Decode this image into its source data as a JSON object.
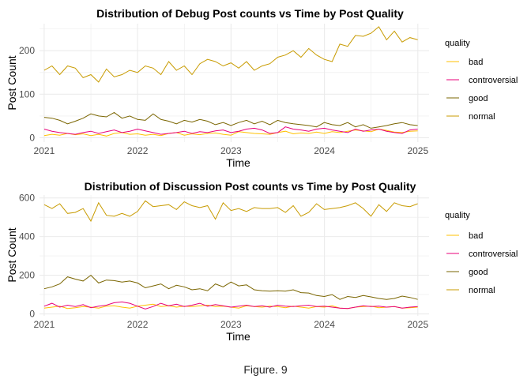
{
  "caption": "Figure. 9",
  "colors": {
    "bad": "#FFC000",
    "controversial": "#E8007A",
    "good": "#7A6500",
    "normal": "#C89B00",
    "grid": "#EBEBEB",
    "axis_text": "#4D4D4D"
  },
  "chart_data": [
    {
      "type": "line",
      "title": "Distribution of Debug Post counts vs Time by Post Quality",
      "xlabel": "Time",
      "ylabel": "Post Count",
      "xlim": [
        2020.95,
        2025.12
      ],
      "ylim": [
        -10,
        262
      ],
      "x_ticks": [
        2021,
        2022,
        2023,
        2024,
        2025
      ],
      "x_tick_labels": [
        "2021",
        "2022",
        "2023",
        "2024",
        "2025"
      ],
      "y_ticks": [
        0,
        100,
        200
      ],
      "y_tick_labels": [
        "0",
        "100",
        "200"
      ],
      "x_start": 2021,
      "x_step": 0.0833,
      "grid": true,
      "legend_title": "quality",
      "legend_position": "right",
      "series": [
        {
          "name": "bad",
          "color_key": "bad",
          "values": [
            5,
            8,
            6,
            10,
            7,
            9,
            5,
            8,
            4,
            10,
            12,
            8,
            9,
            6,
            8,
            5,
            10,
            12,
            6,
            9,
            7,
            10,
            11,
            8,
            6,
            14,
            12,
            10,
            9,
            8,
            12,
            15,
            9,
            11,
            10,
            13,
            10,
            14,
            12,
            15,
            18,
            16,
            14,
            20,
            17,
            13,
            12,
            15,
            16
          ]
        },
        {
          "name": "controversial",
          "color_key": "controversial",
          "values": [
            20,
            15,
            12,
            10,
            8,
            12,
            15,
            10,
            14,
            18,
            12,
            15,
            20,
            16,
            12,
            8,
            10,
            12,
            15,
            10,
            14,
            12,
            16,
            18,
            12,
            15,
            20,
            22,
            18,
            10,
            12,
            25,
            20,
            18,
            15,
            20,
            22,
            18,
            15,
            12,
            20,
            15,
            18,
            20,
            15,
            12,
            10,
            18,
            20
          ]
        },
        {
          "name": "good",
          "color_key": "good",
          "values": [
            47,
            45,
            40,
            32,
            38,
            45,
            55,
            50,
            48,
            58,
            45,
            50,
            42,
            40,
            55,
            42,
            38,
            32,
            40,
            36,
            42,
            38,
            30,
            35,
            28,
            35,
            40,
            32,
            38,
            30,
            40,
            35,
            32,
            30,
            28,
            25,
            35,
            30,
            28,
            35,
            25,
            30,
            22,
            25,
            28,
            32,
            35,
            30,
            28
          ]
        },
        {
          "name": "normal",
          "color_key": "normal",
          "values": [
            155,
            165,
            145,
            165,
            160,
            138,
            145,
            128,
            158,
            140,
            145,
            155,
            150,
            165,
            160,
            145,
            175,
            155,
            165,
            145,
            170,
            180,
            175,
            165,
            172,
            160,
            175,
            155,
            165,
            170,
            185,
            190,
            200,
            185,
            205,
            190,
            180,
            175,
            215,
            210,
            235,
            233,
            240,
            255,
            225,
            245,
            220,
            230,
            225
          ]
        }
      ]
    },
    {
      "type": "line",
      "title": "Distribution of Discussion Post counts vs Time by Post Quality",
      "xlabel": "Time",
      "ylabel": "Post Count",
      "xlim": [
        2020.95,
        2025.12
      ],
      "ylim": [
        -10,
        615
      ],
      "x_ticks": [
        2021,
        2022,
        2023,
        2024,
        2025
      ],
      "x_tick_labels": [
        "2021",
        "2022",
        "2023",
        "2024",
        "2025"
      ],
      "y_ticks": [
        0,
        200,
        400,
        600
      ],
      "y_tick_labels": [
        "0",
        "200",
        "400",
        "600"
      ],
      "x_start": 2021,
      "x_step": 0.0833,
      "grid": true,
      "legend_title": "quality",
      "legend_position": "right",
      "series": [
        {
          "name": "bad",
          "color_key": "bad",
          "values": [
            30,
            35,
            40,
            28,
            32,
            38,
            35,
            30,
            40,
            42,
            35,
            30,
            40,
            45,
            50,
            38,
            42,
            35,
            40,
            38,
            42,
            45,
            38,
            40,
            35,
            30,
            42,
            38,
            35,
            40,
            38,
            32,
            40,
            35,
            30,
            38,
            35,
            42,
            30,
            28,
            35,
            38,
            40,
            32,
            35,
            38,
            30,
            32,
            35
          ]
        },
        {
          "name": "controversial",
          "color_key": "controversial",
          "values": [
            40,
            55,
            35,
            45,
            38,
            48,
            32,
            40,
            45,
            58,
            62,
            55,
            40,
            25,
            38,
            55,
            42,
            50,
            38,
            45,
            55,
            40,
            48,
            42,
            35,
            40,
            45,
            38,
            42,
            35,
            45,
            40,
            38,
            42,
            45,
            38,
            40,
            35,
            30,
            28,
            35,
            42,
            38,
            40,
            35,
            38,
            30,
            35,
            38
          ]
        },
        {
          "name": "good",
          "color_key": "good",
          "values": [
            130,
            140,
            155,
            192,
            180,
            170,
            200,
            160,
            175,
            172,
            165,
            170,
            160,
            135,
            145,
            155,
            130,
            148,
            140,
            125,
            130,
            120,
            155,
            140,
            165,
            145,
            150,
            125,
            120,
            118,
            120,
            118,
            125,
            110,
            108,
            95,
            90,
            100,
            75,
            90,
            85,
            95,
            88,
            80,
            75,
            80,
            92,
            85,
            75
          ]
        },
        {
          "name": "normal",
          "color_key": "normal",
          "values": [
            565,
            545,
            570,
            520,
            525,
            545,
            480,
            575,
            510,
            505,
            520,
            505,
            530,
            585,
            555,
            560,
            565,
            540,
            580,
            560,
            550,
            560,
            490,
            575,
            535,
            545,
            530,
            550,
            545,
            545,
            550,
            525,
            560,
            505,
            525,
            570,
            540,
            545,
            550,
            560,
            575,
            545,
            505,
            565,
            530,
            575,
            560,
            555,
            570
          ]
        }
      ]
    }
  ]
}
